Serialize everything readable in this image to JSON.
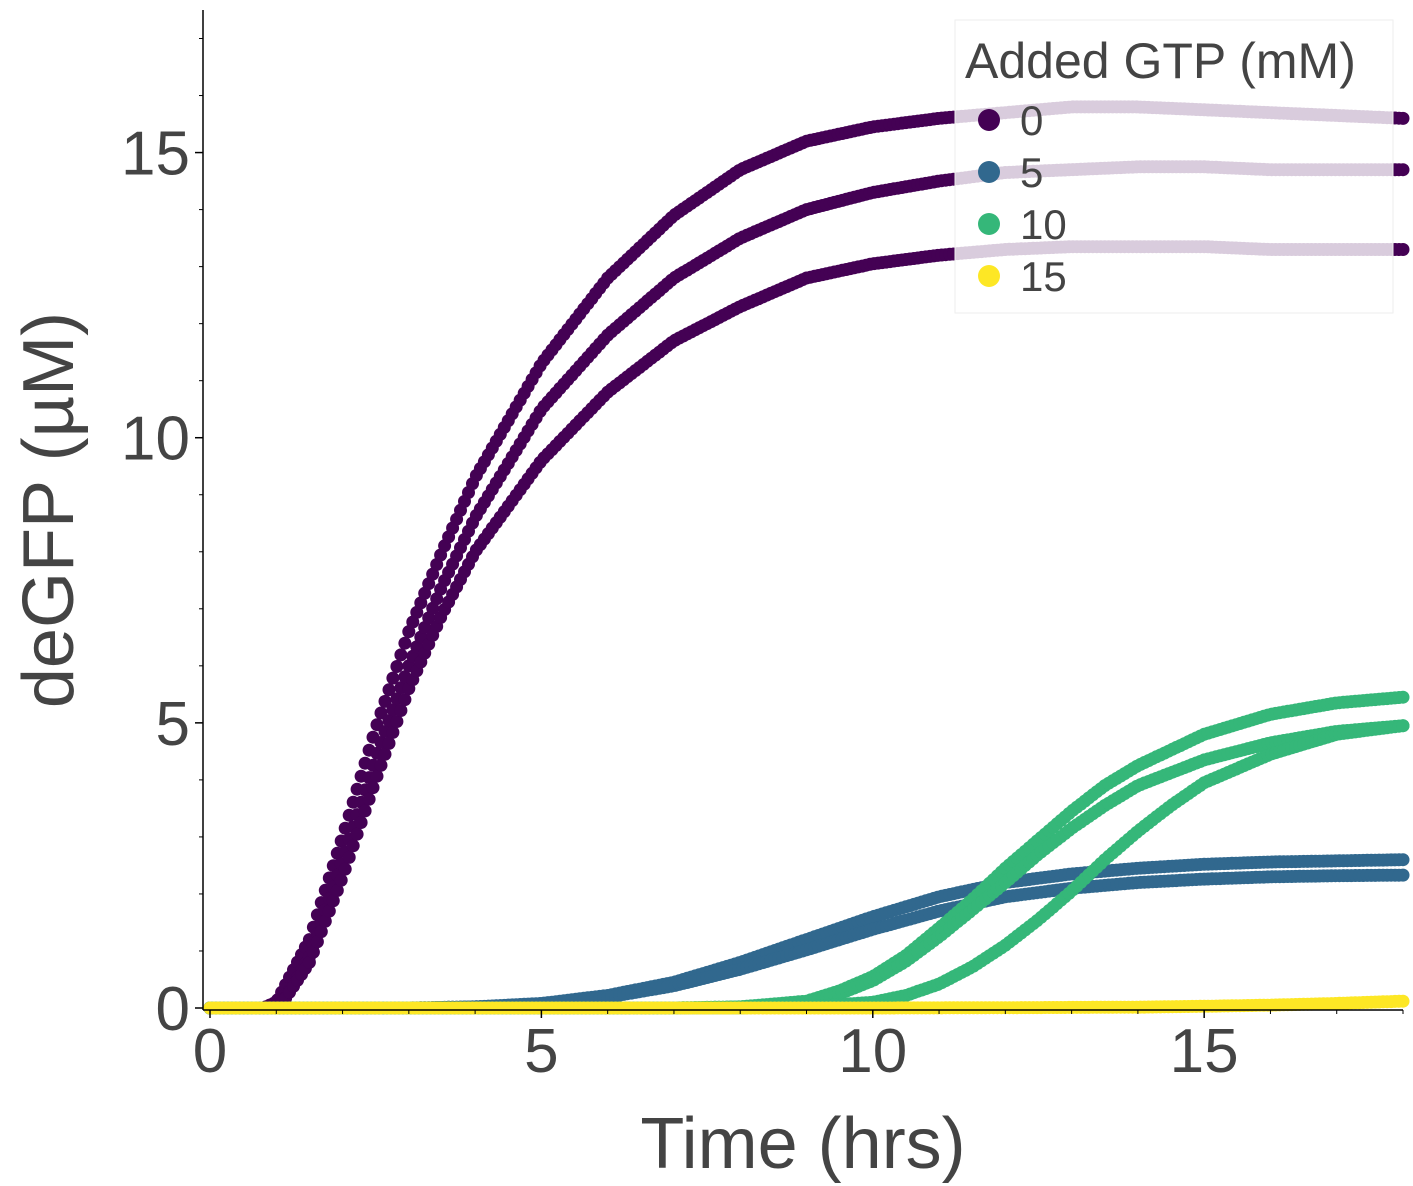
{
  "chart_data": {
    "type": "scatter",
    "xlabel": "Time (hrs)",
    "ylabel": "deGFP (µM)",
    "xlim": [
      0,
      18
    ],
    "ylim": [
      0,
      17.5
    ],
    "x_ticks": [
      0,
      5,
      10,
      15
    ],
    "x_tick_labels": [
      "0",
      "5",
      "10",
      "15"
    ],
    "y_ticks": [
      0,
      5,
      10,
      15
    ],
    "y_tick_labels": [
      "0",
      "5",
      "10",
      "15"
    ],
    "grid": false,
    "legend": {
      "title": "Added GTP (mM)",
      "position": "top-right",
      "entries": [
        {
          "label": "0",
          "color": "#440154"
        },
        {
          "label": "5",
          "color": "#31688e"
        },
        {
          "label": "10",
          "color": "#35b779"
        },
        {
          "label": "15",
          "color": "#fde725"
        }
      ]
    },
    "series": [
      {
        "group": "0",
        "color": "#440154",
        "x": [
          0,
          0.8,
          1,
          1.5,
          2,
          2.5,
          3,
          3.5,
          4,
          5,
          6,
          7,
          8,
          9,
          10,
          11,
          12,
          13,
          14,
          15,
          16,
          17,
          18
        ],
        "y": [
          0,
          0,
          0.1,
          1.2,
          3.0,
          4.9,
          6.6,
          8.0,
          9.3,
          11.3,
          12.8,
          13.9,
          14.7,
          15.2,
          15.45,
          15.6,
          15.7,
          15.8,
          15.8,
          15.75,
          15.7,
          15.65,
          15.6
        ]
      },
      {
        "group": "0",
        "color": "#440154",
        "x": [
          0,
          0.9,
          1.1,
          1.5,
          2,
          2.5,
          3,
          3.5,
          4,
          5,
          6,
          7,
          8,
          9,
          10,
          11,
          12,
          13,
          14,
          15,
          16,
          17,
          18
        ],
        "y": [
          0,
          0,
          0.1,
          0.9,
          2.6,
          4.4,
          6.0,
          7.4,
          8.6,
          10.5,
          11.8,
          12.8,
          13.5,
          14.0,
          14.3,
          14.5,
          14.65,
          14.7,
          14.75,
          14.75,
          14.7,
          14.7,
          14.7
        ]
      },
      {
        "group": "0",
        "color": "#440154",
        "x": [
          0,
          0.9,
          1.1,
          1.5,
          2,
          2.5,
          3,
          3.5,
          4,
          5,
          6,
          7,
          8,
          9,
          10,
          11,
          12,
          13,
          14,
          15,
          16,
          17,
          18
        ],
        "y": [
          0,
          0,
          0.1,
          0.8,
          2.3,
          4.0,
          5.6,
          6.9,
          8.0,
          9.6,
          10.8,
          11.7,
          12.3,
          12.8,
          13.05,
          13.2,
          13.3,
          13.35,
          13.35,
          13.35,
          13.3,
          13.3,
          13.3
        ]
      },
      {
        "group": "5",
        "color": "#31688e",
        "x": [
          0,
          3,
          4,
          5,
          6,
          7,
          8,
          9,
          10,
          11,
          12,
          13,
          14,
          15,
          16,
          17,
          18
        ],
        "y": [
          0,
          0,
          0.02,
          0.08,
          0.22,
          0.45,
          0.8,
          1.2,
          1.6,
          1.95,
          2.2,
          2.35,
          2.45,
          2.52,
          2.56,
          2.58,
          2.6
        ]
      },
      {
        "group": "5",
        "color": "#31688e",
        "x": [
          0,
          3,
          4,
          5,
          6,
          7,
          8,
          9,
          10,
          11,
          12,
          13,
          14,
          15,
          16,
          17,
          18
        ],
        "y": [
          0,
          0,
          0.02,
          0.07,
          0.19,
          0.39,
          0.68,
          1.02,
          1.38,
          1.7,
          1.95,
          2.1,
          2.2,
          2.26,
          2.3,
          2.32,
          2.33
        ]
      },
      {
        "group": "10",
        "color": "#35b779",
        "x": [
          0,
          7,
          8,
          9,
          9.5,
          10,
          10.5,
          11,
          11.5,
          12,
          12.5,
          13,
          13.5,
          14,
          15,
          16,
          17,
          18
        ],
        "y": [
          0,
          0,
          0.02,
          0.12,
          0.3,
          0.55,
          0.92,
          1.4,
          1.9,
          2.45,
          2.95,
          3.45,
          3.9,
          4.25,
          4.8,
          5.15,
          5.35,
          5.45
        ]
      },
      {
        "group": "10",
        "color": "#35b779",
        "x": [
          0,
          7,
          8,
          9,
          9.5,
          10,
          10.5,
          11,
          11.5,
          12,
          12.5,
          13,
          13.5,
          14,
          15,
          16,
          17,
          18
        ],
        "y": [
          0,
          0,
          0.02,
          0.1,
          0.25,
          0.48,
          0.82,
          1.25,
          1.72,
          2.2,
          2.7,
          3.15,
          3.55,
          3.9,
          4.35,
          4.65,
          4.85,
          4.95
        ]
      },
      {
        "group": "10",
        "color": "#35b779",
        "x": [
          0,
          8,
          9,
          10,
          10.5,
          11,
          11.5,
          12,
          12.5,
          13,
          13.5,
          14,
          14.5,
          15,
          16,
          17,
          18
        ],
        "y": [
          0,
          0,
          0.02,
          0.1,
          0.22,
          0.42,
          0.72,
          1.1,
          1.55,
          2.05,
          2.6,
          3.1,
          3.55,
          3.95,
          4.45,
          4.8,
          4.95
        ]
      },
      {
        "group": "15",
        "color": "#fde725",
        "x": [
          0,
          10,
          12,
          14,
          15,
          16,
          17,
          18
        ],
        "y": [
          0,
          0,
          0.005,
          0.015,
          0.03,
          0.05,
          0.08,
          0.12
        ]
      }
    ]
  }
}
